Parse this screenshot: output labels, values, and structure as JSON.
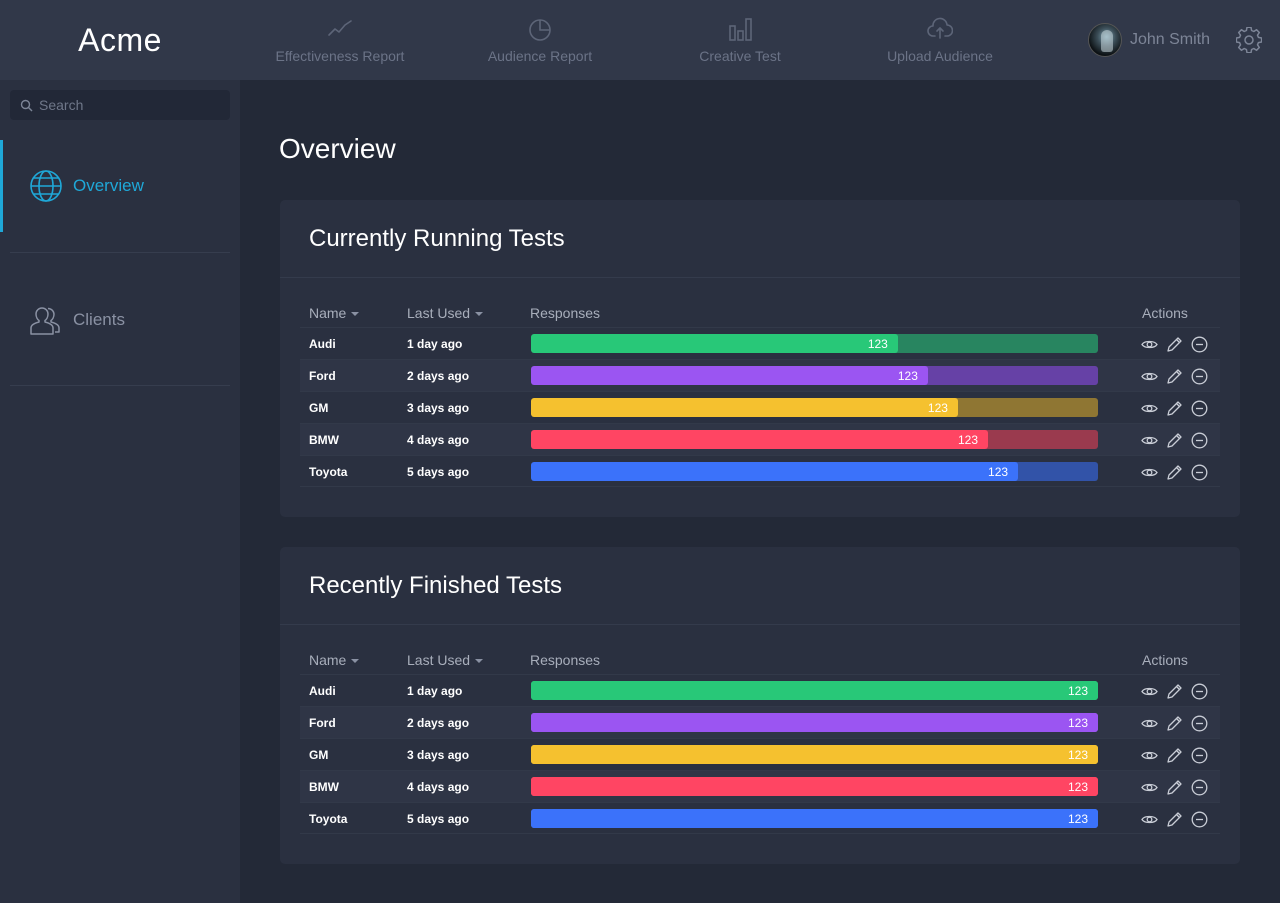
{
  "app": {
    "brand": "Acme"
  },
  "nav": [
    {
      "label": "Effectiveness Report",
      "icon": "line-chart-icon"
    },
    {
      "label": "Audience Report",
      "icon": "pie-chart-icon"
    },
    {
      "label": "Creative Test",
      "icon": "bar-chart-icon"
    },
    {
      "label": "Upload Audience",
      "icon": "cloud-upload-icon"
    }
  ],
  "user": {
    "name": "John Smith"
  },
  "sidebar": {
    "search_placeholder": "Search",
    "items": [
      {
        "label": "Overview",
        "icon": "globe-icon",
        "active": true
      },
      {
        "label": "Clients",
        "icon": "users-icon",
        "active": false
      }
    ]
  },
  "page": {
    "title": "Overview"
  },
  "colors": {
    "accent": "#1fa8d8",
    "green": "#28c878",
    "purple": "#9b55f2",
    "yellow": "#f5c12f",
    "red": "#ff4563",
    "blue": "#3b72fa"
  },
  "running": {
    "title": "Currently Running Tests",
    "headers": {
      "name": "Name",
      "last_used": "Last Used",
      "responses": "Responses",
      "actions": "Actions"
    },
    "rows": [
      {
        "name": "Audi",
        "last_used": "1 day ago",
        "responses": "123",
        "progress": 0.647,
        "color": "#28c878",
        "track": "#288560"
      },
      {
        "name": "Ford",
        "last_used": "2 days ago",
        "responses": "123",
        "progress": 0.7,
        "color": "#9b55f2",
        "track": "#6641a6"
      },
      {
        "name": "GM",
        "last_used": "3 days ago",
        "responses": "123",
        "progress": 0.753,
        "color": "#f5c12f",
        "track": "#8f7633"
      },
      {
        "name": "BMW",
        "last_used": "4 days ago",
        "responses": "123",
        "progress": 0.806,
        "color": "#ff4563",
        "track": "#9a3a4e"
      },
      {
        "name": "Toyota",
        "last_used": "5 days ago",
        "responses": "123",
        "progress": 0.859,
        "color": "#3b72fa",
        "track": "#3253a8"
      }
    ]
  },
  "finished": {
    "title": "Recently Finished Tests",
    "headers": {
      "name": "Name",
      "last_used": "Last Used",
      "responses": "Responses",
      "actions": "Actions"
    },
    "rows": [
      {
        "name": "Audi",
        "last_used": "1 day ago",
        "responses": "123",
        "progress": 1,
        "color": "#28c878",
        "track": "#28c878"
      },
      {
        "name": "Ford",
        "last_used": "2 days ago",
        "responses": "123",
        "progress": 1,
        "color": "#9b55f2",
        "track": "#9b55f2"
      },
      {
        "name": "GM",
        "last_used": "3 days ago",
        "responses": "123",
        "progress": 1,
        "color": "#f5c12f",
        "track": "#f5c12f"
      },
      {
        "name": "BMW",
        "last_used": "4 days ago",
        "responses": "123",
        "progress": 1,
        "color": "#ff4563",
        "track": "#ff4563"
      },
      {
        "name": "Toyota",
        "last_used": "5 days ago",
        "responses": "123",
        "progress": 1,
        "color": "#3b72fa",
        "track": "#3b72fa"
      }
    ]
  }
}
